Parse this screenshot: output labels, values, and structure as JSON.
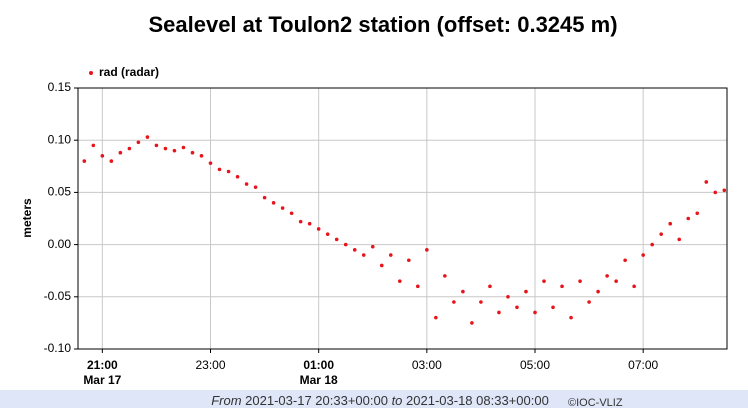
{
  "chart_data": {
    "type": "scatter",
    "title": "Sealevel at Toulon2 station (offset: 0.3245 m)",
    "ylabel": "meters",
    "grid": true,
    "legend": "top-left",
    "xlim": [
      "2021-03-17 20:33",
      "2021-03-18 08:33"
    ],
    "ylim": [
      -0.1,
      0.15
    ],
    "yticks": [
      0.15,
      {
        "value": 0.1,
        "label": "0.10"
      },
      0.05,
      {
        "value": 0.0,
        "label": "0.00"
      },
      -0.05,
      {
        "value": -0.1,
        "label": "-0.10"
      }
    ],
    "xticks": [
      {
        "value": "2021-03-17 21:00",
        "label": "21:00",
        "date": "Mar 17"
      },
      {
        "value": "2021-03-17 23:00",
        "label": "23:00"
      },
      {
        "value": "2021-03-18 01:00",
        "label": "01:00",
        "date": "Mar 18"
      },
      {
        "value": "2021-03-18 03:00",
        "label": "03:00"
      },
      {
        "value": "2021-03-18 05:00",
        "label": "05:00"
      },
      {
        "value": "2021-03-18 07:00",
        "label": "07:00"
      }
    ],
    "footer": {
      "from": "From",
      "start": "2021-03-17 20:33+00:00",
      "to": "to",
      "end": "2021-03-18 08:33+00:00",
      "credit": "©IOC-VLIZ"
    },
    "x": [
      "2021-03-17 20:40",
      "2021-03-17 20:50",
      "2021-03-17 21:00",
      "2021-03-17 21:10",
      "2021-03-17 21:20",
      "2021-03-17 21:30",
      "2021-03-17 21:40",
      "2021-03-17 21:50",
      "2021-03-17 22:00",
      "2021-03-17 22:10",
      "2021-03-17 22:20",
      "2021-03-17 22:30",
      "2021-03-17 22:40",
      "2021-03-17 22:50",
      "2021-03-17 23:00",
      "2021-03-17 23:10",
      "2021-03-17 23:20",
      "2021-03-17 23:30",
      "2021-03-17 23:40",
      "2021-03-17 23:50",
      "2021-03-18 00:00",
      "2021-03-18 00:10",
      "2021-03-18 00:20",
      "2021-03-18 00:30",
      "2021-03-18 00:40",
      "2021-03-18 00:50",
      "2021-03-18 01:00",
      "2021-03-18 01:10",
      "2021-03-18 01:20",
      "2021-03-18 01:30",
      "2021-03-18 01:40",
      "2021-03-18 01:50",
      "2021-03-18 02:00",
      "2021-03-18 02:10",
      "2021-03-18 02:20",
      "2021-03-18 02:30",
      "2021-03-18 02:40",
      "2021-03-18 02:50",
      "2021-03-18 03:00",
      "2021-03-18 03:10",
      "2021-03-18 03:20",
      "2021-03-18 03:30",
      "2021-03-18 03:40",
      "2021-03-18 03:50",
      "2021-03-18 04:00",
      "2021-03-18 04:10",
      "2021-03-18 04:20",
      "2021-03-18 04:30",
      "2021-03-18 04:40",
      "2021-03-18 04:50",
      "2021-03-18 05:00",
      "2021-03-18 05:10",
      "2021-03-18 05:20",
      "2021-03-18 05:30",
      "2021-03-18 05:40",
      "2021-03-18 05:50",
      "2021-03-18 06:00",
      "2021-03-18 06:10",
      "2021-03-18 06:20",
      "2021-03-18 06:30",
      "2021-03-18 06:40",
      "2021-03-18 06:50",
      "2021-03-18 07:00",
      "2021-03-18 07:10",
      "2021-03-18 07:20",
      "2021-03-18 07:30",
      "2021-03-18 07:40",
      "2021-03-18 07:50",
      "2021-03-18 08:00",
      "2021-03-18 08:10",
      "2021-03-18 08:20",
      "2021-03-18 08:30"
    ],
    "series": [
      {
        "name": "rad (radar)",
        "color": "#e8141b",
        "values": [
          0.08,
          0.095,
          0.085,
          0.08,
          0.088,
          0.092,
          0.098,
          0.103,
          0.095,
          0.092,
          0.09,
          0.093,
          0.088,
          0.085,
          0.078,
          0.072,
          0.07,
          0.065,
          0.058,
          0.055,
          0.045,
          0.04,
          0.035,
          0.03,
          0.022,
          0.02,
          0.015,
          0.01,
          0.005,
          0.0,
          -0.005,
          -0.01,
          -0.002,
          -0.02,
          -0.01,
          -0.035,
          -0.015,
          -0.04,
          -0.005,
          -0.07,
          -0.03,
          -0.055,
          -0.045,
          -0.075,
          -0.055,
          -0.04,
          -0.065,
          -0.05,
          -0.06,
          -0.045,
          -0.065,
          -0.035,
          -0.06,
          -0.04,
          -0.07,
          -0.035,
          -0.055,
          -0.045,
          -0.03,
          -0.035,
          -0.015,
          -0.04,
          -0.01,
          0.0,
          0.01,
          0.02,
          0.005,
          0.025,
          0.03,
          0.06,
          0.05,
          0.052
        ]
      }
    ]
  }
}
